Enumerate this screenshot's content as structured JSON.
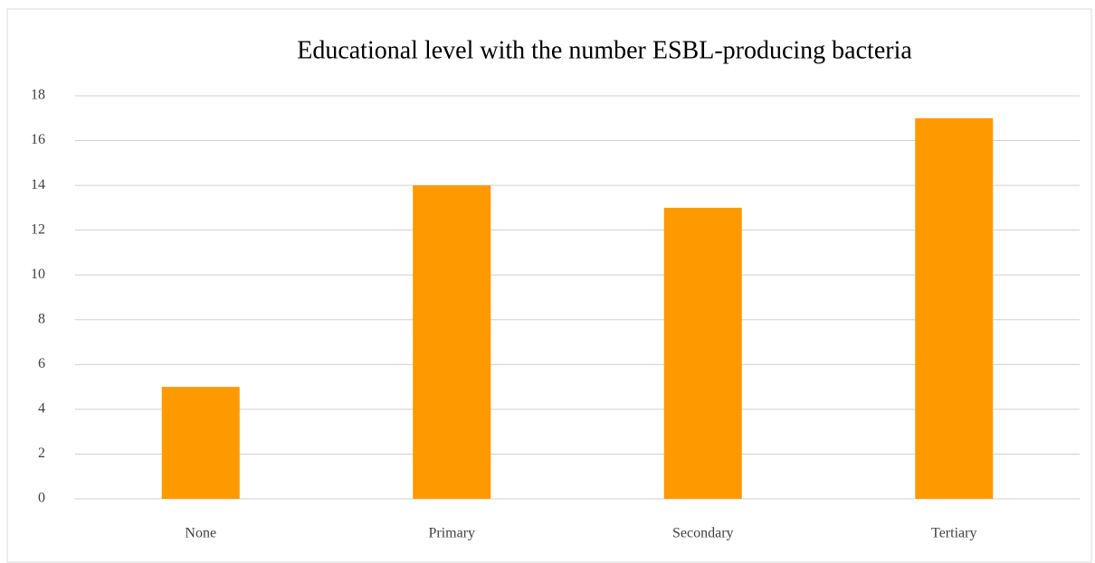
{
  "chart_data": {
    "type": "bar",
    "title": "Educational level with the number ESBL-producing bacteria",
    "categories": [
      "None",
      "Primary",
      "Secondary",
      "Tertiary"
    ],
    "values": [
      5,
      14,
      13,
      17
    ],
    "color": "#ff9900",
    "ylim": [
      0,
      18
    ],
    "yticks": [
      0,
      2,
      4,
      6,
      8,
      10,
      12,
      14,
      16,
      18
    ],
    "grid": true
  }
}
